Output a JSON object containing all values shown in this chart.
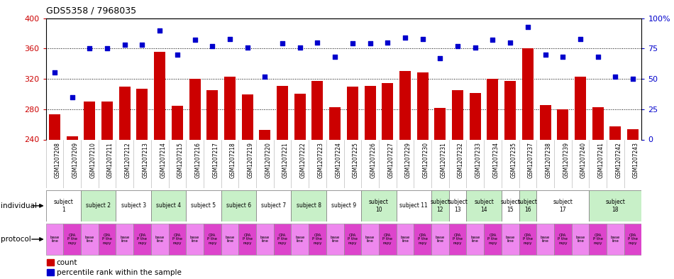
{
  "title": "GDS5358 / 7968035",
  "samples": [
    "GSM1207208",
    "GSM1207209",
    "GSM1207210",
    "GSM1207211",
    "GSM1207212",
    "GSM1207213",
    "GSM1207214",
    "GSM1207215",
    "GSM1207216",
    "GSM1207217",
    "GSM1207218",
    "GSM1207219",
    "GSM1207220",
    "GSM1207221",
    "GSM1207222",
    "GSM1207223",
    "GSM1207224",
    "GSM1207225",
    "GSM1207226",
    "GSM1207227",
    "GSM1207229",
    "GSM1207230",
    "GSM1207231",
    "GSM1207232",
    "GSM1207233",
    "GSM1207234",
    "GSM1207235",
    "GSM1207237",
    "GSM1207238",
    "GSM1207239",
    "GSM1207240",
    "GSM1207241",
    "GSM1207242",
    "GSM1207243"
  ],
  "counts": [
    273,
    244,
    290,
    290,
    310,
    307,
    356,
    284,
    320,
    305,
    323,
    299,
    253,
    311,
    300,
    317,
    283,
    310,
    311,
    314,
    330,
    328,
    282,
    305,
    301,
    320,
    317,
    360,
    285,
    280,
    323,
    283,
    257,
    254
  ],
  "percentiles": [
    55,
    35,
    75,
    75,
    78,
    78,
    90,
    70,
    82,
    77,
    83,
    76,
    52,
    79,
    76,
    80,
    68,
    79,
    79,
    80,
    84,
    83,
    67,
    77,
    76,
    82,
    80,
    93,
    70,
    68,
    83,
    68,
    52,
    50
  ],
  "ylim_left": [
    240,
    400
  ],
  "ylim_right": [
    0,
    100
  ],
  "yticks_left": [
    240,
    280,
    320,
    360,
    400
  ],
  "yticks_right": [
    0,
    25,
    50,
    75,
    100
  ],
  "ytick_labels_right": [
    "0",
    "25",
    "50",
    "75",
    "100%"
  ],
  "bar_color": "#cc0000",
  "dot_color": "#0000cc",
  "grid_color": "#000000",
  "subjects": [
    {
      "label": "subject\n1",
      "start": 0,
      "end": 2,
      "color": "#ffffff"
    },
    {
      "label": "subject 2",
      "start": 2,
      "end": 4,
      "color": "#c8f0c8"
    },
    {
      "label": "subject 3",
      "start": 4,
      "end": 6,
      "color": "#ffffff"
    },
    {
      "label": "subject 4",
      "start": 6,
      "end": 8,
      "color": "#c8f0c8"
    },
    {
      "label": "subject 5",
      "start": 8,
      "end": 10,
      "color": "#ffffff"
    },
    {
      "label": "subject 6",
      "start": 10,
      "end": 12,
      "color": "#c8f0c8"
    },
    {
      "label": "subject 7",
      "start": 12,
      "end": 14,
      "color": "#ffffff"
    },
    {
      "label": "subject 8",
      "start": 14,
      "end": 16,
      "color": "#c8f0c8"
    },
    {
      "label": "subject 9",
      "start": 16,
      "end": 18,
      "color": "#ffffff"
    },
    {
      "label": "subject\n10",
      "start": 18,
      "end": 20,
      "color": "#c8f0c8"
    },
    {
      "label": "subject 11",
      "start": 20,
      "end": 22,
      "color": "#ffffff"
    },
    {
      "label": "subject\n12",
      "start": 22,
      "end": 23,
      "color": "#c8f0c8"
    },
    {
      "label": "subject\n13",
      "start": 23,
      "end": 24,
      "color": "#ffffff"
    },
    {
      "label": "subject\n14",
      "start": 24,
      "end": 26,
      "color": "#c8f0c8"
    },
    {
      "label": "subject\n15",
      "start": 26,
      "end": 27,
      "color": "#ffffff"
    },
    {
      "label": "subject\n16",
      "start": 27,
      "end": 28,
      "color": "#c8f0c8"
    },
    {
      "label": "subject\n17",
      "start": 28,
      "end": 31,
      "color": "#ffffff"
    },
    {
      "label": "subject\n18",
      "start": 31,
      "end": 34,
      "color": "#c8f0c8"
    }
  ],
  "protocols_baseline_color": "#ee88ee",
  "protocols_cpa_color": "#dd44cc",
  "dot_size": 18,
  "bar_width": 0.65,
  "individual_label": "individual",
  "protocol_label": "protocol",
  "legend_count_label": "count",
  "legend_pct_label": "percentile rank within the sample",
  "tick_label_color_left": "#cc0000",
  "tick_label_color_right": "#0000cc",
  "sample_bg_color": "#d8d8d8",
  "plot_bg_color": "#ffffff"
}
